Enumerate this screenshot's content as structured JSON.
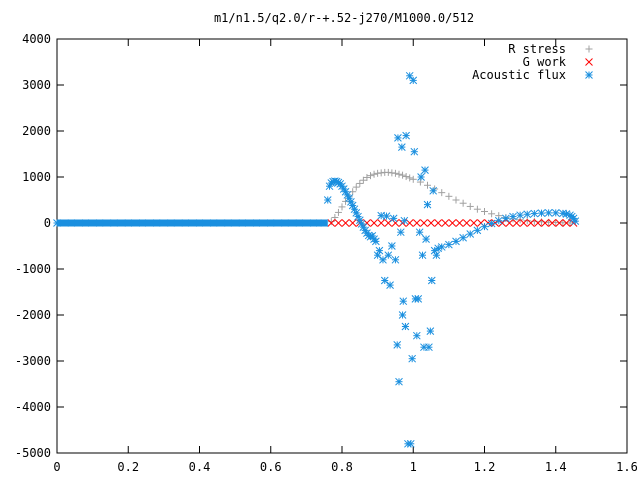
{
  "chart_data": {
    "type": "scatter",
    "title": "m1/n1.5/q2.0/r-+.52-j270/M1000.0/512",
    "xlabel": "",
    "ylabel": "",
    "xlim": [
      0,
      1.6
    ],
    "ylim": [
      -5000,
      4000
    ],
    "x_ticks": [
      0,
      0.2,
      0.4,
      0.6,
      0.8,
      1,
      1.2,
      1.4,
      1.6
    ],
    "x_tick_labels": [
      "0",
      "0.2",
      "0.4",
      "0.6",
      "0.8",
      "1",
      "1.2",
      "1.4",
      "1.6"
    ],
    "y_ticks": [
      4000,
      3000,
      2000,
      1000,
      0,
      -1000,
      -2000,
      -3000,
      -4000,
      -5000
    ],
    "y_tick_labels": [
      "4000",
      "3000",
      "2000",
      "1000",
      "0",
      "-1000",
      "-2000",
      "-3000",
      "-4000",
      "-5000"
    ],
    "grid": false,
    "legend_position": "top-right",
    "series": [
      {
        "name": "R stress",
        "marker": "plus",
        "color": "#a0a0a0",
        "points": [
          [
            0.77,
            30
          ],
          [
            0.78,
            120
          ],
          [
            0.79,
            230
          ],
          [
            0.8,
            350
          ],
          [
            0.81,
            470
          ],
          [
            0.82,
            580
          ],
          [
            0.83,
            680
          ],
          [
            0.84,
            780
          ],
          [
            0.85,
            860
          ],
          [
            0.86,
            930
          ],
          [
            0.87,
            990
          ],
          [
            0.88,
            1030
          ],
          [
            0.89,
            1060
          ],
          [
            0.9,
            1080
          ],
          [
            0.91,
            1090
          ],
          [
            0.92,
            1100
          ],
          [
            0.93,
            1100
          ],
          [
            0.94,
            1090
          ],
          [
            0.95,
            1080
          ],
          [
            0.96,
            1060
          ],
          [
            0.97,
            1040
          ],
          [
            0.98,
            1010
          ],
          [
            0.99,
            980
          ],
          [
            1.0,
            950
          ],
          [
            1.02,
            890
          ],
          [
            1.04,
            820
          ],
          [
            1.06,
            740
          ],
          [
            1.08,
            660
          ],
          [
            1.1,
            580
          ],
          [
            1.12,
            500
          ],
          [
            1.14,
            430
          ],
          [
            1.16,
            360
          ],
          [
            1.18,
            300
          ],
          [
            1.2,
            250
          ],
          [
            1.22,
            200
          ],
          [
            1.24,
            160
          ],
          [
            1.26,
            120
          ],
          [
            1.28,
            90
          ],
          [
            1.3,
            70
          ],
          [
            1.32,
            50
          ],
          [
            1.34,
            35
          ],
          [
            1.36,
            25
          ],
          [
            1.38,
            15
          ],
          [
            1.4,
            10
          ],
          [
            1.42,
            5
          ],
          [
            1.44,
            2
          ]
        ]
      },
      {
        "name": "G work",
        "marker": "cross",
        "color": "#ff0000",
        "points": [
          [
            0.77,
            0
          ],
          [
            0.79,
            0
          ],
          [
            0.81,
            0
          ],
          [
            0.83,
            0
          ],
          [
            0.85,
            0
          ],
          [
            0.87,
            0
          ],
          [
            0.89,
            0
          ],
          [
            0.91,
            0
          ],
          [
            0.93,
            0
          ],
          [
            0.95,
            0
          ],
          [
            0.97,
            0
          ],
          [
            0.99,
            0
          ],
          [
            1.01,
            0
          ],
          [
            1.03,
            0
          ],
          [
            1.05,
            0
          ],
          [
            1.07,
            0
          ],
          [
            1.09,
            0
          ],
          [
            1.11,
            0
          ],
          [
            1.13,
            0
          ],
          [
            1.15,
            0
          ],
          [
            1.17,
            0
          ],
          [
            1.19,
            0
          ],
          [
            1.21,
            0
          ],
          [
            1.23,
            0
          ],
          [
            1.25,
            0
          ],
          [
            1.27,
            0
          ],
          [
            1.29,
            0
          ],
          [
            1.31,
            0
          ],
          [
            1.33,
            0
          ],
          [
            1.35,
            0
          ],
          [
            1.37,
            0
          ],
          [
            1.39,
            0
          ],
          [
            1.41,
            0
          ],
          [
            1.43,
            0
          ],
          [
            1.45,
            0
          ]
        ]
      },
      {
        "name": "Acoustic flux",
        "marker": "star",
        "color": "#1a8fdf",
        "points": [
          [
            0,
            0
          ],
          [
            0.04,
            0
          ],
          [
            0.08,
            0
          ],
          [
            0.12,
            0
          ],
          [
            0.16,
            0
          ],
          [
            0.2,
            0
          ],
          [
            0.24,
            0
          ],
          [
            0.28,
            0
          ],
          [
            0.32,
            0
          ],
          [
            0.36,
            0
          ],
          [
            0.4,
            0
          ],
          [
            0.44,
            0
          ],
          [
            0.48,
            0
          ],
          [
            0.52,
            0
          ],
          [
            0.56,
            0
          ],
          [
            0.6,
            0
          ],
          [
            0.64,
            0
          ],
          [
            0.68,
            0
          ],
          [
            0.72,
            0
          ],
          [
            0.75,
            0
          ],
          [
            0.76,
            500
          ],
          [
            0.765,
            800
          ],
          [
            0.77,
            870
          ],
          [
            0.775,
            900
          ],
          [
            0.78,
            910
          ],
          [
            0.785,
            900
          ],
          [
            0.79,
            880
          ],
          [
            0.795,
            850
          ],
          [
            0.8,
            800
          ],
          [
            0.805,
            740
          ],
          [
            0.81,
            680
          ],
          [
            0.815,
            610
          ],
          [
            0.82,
            540
          ],
          [
            0.825,
            460
          ],
          [
            0.83,
            380
          ],
          [
            0.835,
            300
          ],
          [
            0.84,
            220
          ],
          [
            0.845,
            140
          ],
          [
            0.85,
            60
          ],
          [
            0.855,
            -20
          ],
          [
            0.86,
            -90
          ],
          [
            0.865,
            -160
          ],
          [
            0.87,
            -220
          ],
          [
            0.875,
            -270
          ],
          [
            0.88,
            -300
          ],
          [
            0.885,
            -280
          ],
          [
            0.89,
            -350
          ],
          [
            0.895,
            -400
          ],
          [
            0.9,
            -700
          ],
          [
            0.905,
            -600
          ],
          [
            0.91,
            160
          ],
          [
            0.915,
            -800
          ],
          [
            0.92,
            -1250
          ],
          [
            0.925,
            150
          ],
          [
            0.93,
            -700
          ],
          [
            0.935,
            -1350
          ],
          [
            0.94,
            -500
          ],
          [
            0.945,
            100
          ],
          [
            0.95,
            -800
          ],
          [
            0.955,
            -2650
          ],
          [
            0.957,
            1850
          ],
          [
            0.96,
            -3450
          ],
          [
            0.965,
            -200
          ],
          [
            0.968,
            1650
          ],
          [
            0.97,
            -2000
          ],
          [
            0.972,
            -1700
          ],
          [
            0.975,
            50
          ],
          [
            0.978,
            -2250
          ],
          [
            0.98,
            1900
          ],
          [
            0.985,
            -4800
          ],
          [
            0.99,
            3200
          ],
          [
            0.993,
            -4800
          ],
          [
            0.997,
            -2950
          ],
          [
            1.0,
            3100
          ],
          [
            1.003,
            1550
          ],
          [
            1.006,
            -1650
          ],
          [
            1.01,
            -2450
          ],
          [
            1.014,
            -1650
          ],
          [
            1.018,
            -200
          ],
          [
            1.022,
            1000
          ],
          [
            1.026,
            -700
          ],
          [
            1.03,
            -2700
          ],
          [
            1.033,
            1150
          ],
          [
            1.036,
            -350
          ],
          [
            1.04,
            400
          ],
          [
            1.044,
            -2700
          ],
          [
            1.048,
            -2350
          ],
          [
            1.052,
            -1250
          ],
          [
            1.056,
            700
          ],
          [
            1.06,
            -600
          ],
          [
            1.065,
            -700
          ],
          [
            1.07,
            -550
          ],
          [
            1.08,
            -520
          ],
          [
            1.1,
            -470
          ],
          [
            1.12,
            -400
          ],
          [
            1.14,
            -320
          ],
          [
            1.16,
            -240
          ],
          [
            1.18,
            -160
          ],
          [
            1.2,
            -80
          ],
          [
            1.22,
            -10
          ],
          [
            1.24,
            50
          ],
          [
            1.26,
            100
          ],
          [
            1.28,
            140
          ],
          [
            1.3,
            170
          ],
          [
            1.32,
            190
          ],
          [
            1.34,
            205
          ],
          [
            1.36,
            215
          ],
          [
            1.38,
            220
          ],
          [
            1.4,
            220
          ],
          [
            1.42,
            210
          ],
          [
            1.43,
            195
          ],
          [
            1.44,
            170
          ],
          [
            1.445,
            140
          ],
          [
            1.45,
            100
          ],
          [
            1.455,
            40
          ]
        ]
      }
    ]
  }
}
